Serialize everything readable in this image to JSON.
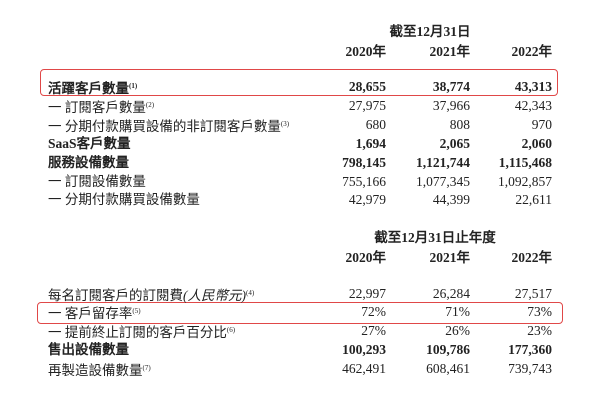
{
  "section1": {
    "title": "截至12月31日",
    "years": [
      "2020年",
      "2021年",
      "2022年"
    ],
    "rows": [
      {
        "label": "活躍客戶數量",
        "note": "(1)",
        "values": [
          "28,655",
          "38,774",
          "43,313"
        ],
        "bold": true,
        "highlighted": true
      },
      {
        "label": "一 訂閱客戶數量",
        "note": "(2)",
        "values": [
          "27,975",
          "37,966",
          "42,343"
        ]
      },
      {
        "label": "一 分期付款購買設備的非訂閱客戶數量",
        "note": "(3)",
        "values": [
          "680",
          "808",
          "970"
        ]
      },
      {
        "label": "SaaS客戶數量",
        "note": "",
        "values": [
          "1,694",
          "2,065",
          "2,060"
        ],
        "bold": true
      },
      {
        "label": "服務設備數量",
        "note": "",
        "values": [
          "798,145",
          "1,121,744",
          "1,115,468"
        ],
        "bold": true
      },
      {
        "label": "一 訂閱設備數量",
        "note": "",
        "values": [
          "755,166",
          "1,077,345",
          "1,092,857"
        ]
      },
      {
        "label": "一 分期付款購買設備數量",
        "note": "",
        "values": [
          "42,979",
          "44,399",
          "22,611"
        ]
      }
    ]
  },
  "section2": {
    "title": "截至12月31日止年度",
    "years": [
      "2020年",
      "2021年",
      "2022年"
    ],
    "rows": [
      {
        "label": "每名訂閱客戶的訂閱費",
        "label_italic": "(人民幣元)",
        "note": "(4)",
        "values": [
          "22,997",
          "26,284",
          "27,517"
        ]
      },
      {
        "label": "一 客戶留存率",
        "note": "(5)",
        "values": [
          "72%",
          "71%",
          "73%"
        ],
        "highlighted": true
      },
      {
        "label": "一 提前終止訂閱的客戶百分比",
        "note": "(6)",
        "values": [
          "27%",
          "26%",
          "23%"
        ]
      },
      {
        "label": "售出設備數量",
        "note": "",
        "values": [
          "100,293",
          "109,786",
          "177,360"
        ],
        "bold": true
      },
      {
        "label": "再製造設備數量",
        "note": "(7)",
        "values": [
          "462,491",
          "608,461",
          "739,743"
        ]
      }
    ]
  },
  "highlight_color": "#e04848"
}
